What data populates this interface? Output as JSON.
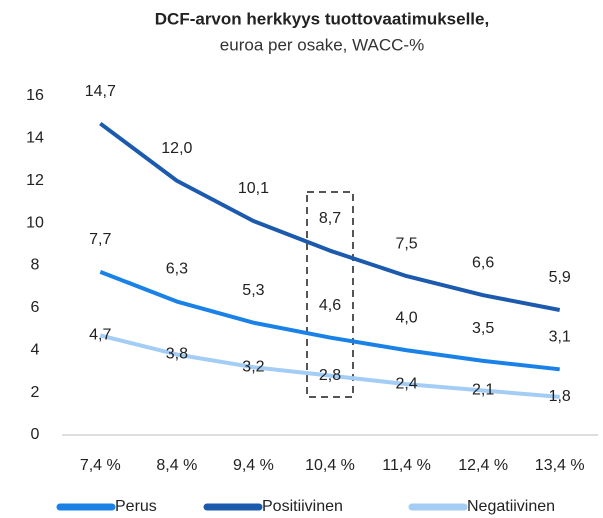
{
  "chart_data": {
    "type": "line",
    "title": "DCF-arvon herkkyys tuottovaatimukselle,",
    "subtitle": "euroa per osake, WACC-%",
    "categories": [
      "7,4 %",
      "8,4 %",
      "9,4 %",
      "10,4 %",
      "11,4 %",
      "12,4 %",
      "13,4 %"
    ],
    "series": [
      {
        "name": "Perus",
        "color": "#1a82e6",
        "values": [
          7.7,
          6.3,
          5.3,
          4.6,
          4.0,
          3.5,
          3.1
        ],
        "value_labels": [
          "7,7",
          "6,3",
          "5,3",
          "4,6",
          "4,0",
          "3,5",
          "3,1"
        ]
      },
      {
        "name": "Positiivinen",
        "color": "#1c5aae",
        "values": [
          14.7,
          12.0,
          10.1,
          8.7,
          7.5,
          6.6,
          5.9
        ],
        "value_labels": [
          "14,7",
          "12,0",
          "10,1",
          "8,7",
          "7,5",
          "6,6",
          "5,9"
        ]
      },
      {
        "name": "Negatiivinen",
        "color": "#a3cdf5",
        "values": [
          4.7,
          3.8,
          3.2,
          2.8,
          2.4,
          2.1,
          1.8
        ],
        "value_labels": [
          "4,7",
          "3,8",
          "3,2",
          "2,8",
          "2,4",
          "2,1",
          "1,8"
        ]
      }
    ],
    "ylim": [
      0,
      16
    ],
    "yticks": [
      0,
      2,
      4,
      6,
      8,
      10,
      12,
      14,
      16
    ],
    "grid": false,
    "legend": "bottom"
  }
}
